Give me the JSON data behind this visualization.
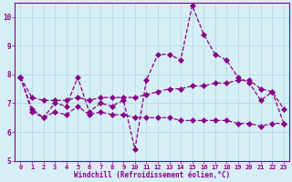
{
  "xlabel": "Windchill (Refroidissement éolien,°C)",
  "ylabel": "",
  "background_color": "#d6eef5",
  "line_color": "#880088",
  "grid_color": "#b8dde8",
  "x": [
    0,
    1,
    2,
    3,
    4,
    5,
    6,
    7,
    8,
    9,
    10,
    11,
    12,
    13,
    14,
    15,
    16,
    17,
    18,
    19,
    20,
    21,
    22,
    23
  ],
  "y_main": [
    7.9,
    6.7,
    6.5,
    7.0,
    6.9,
    7.9,
    6.7,
    7.0,
    6.9,
    7.1,
    5.4,
    7.8,
    8.7,
    8.7,
    8.5,
    10.4,
    9.4,
    8.7,
    8.5,
    7.9,
    7.7,
    7.1,
    7.4,
    6.3
  ],
  "y_upper": [
    7.9,
    7.2,
    7.1,
    7.1,
    7.1,
    7.2,
    7.1,
    7.2,
    7.2,
    7.2,
    7.2,
    7.3,
    7.4,
    7.5,
    7.5,
    7.6,
    7.6,
    7.7,
    7.7,
    7.8,
    7.8,
    7.5,
    7.4,
    6.8
  ],
  "y_lower": [
    7.9,
    6.8,
    6.5,
    6.7,
    6.6,
    6.9,
    6.6,
    6.7,
    6.6,
    6.6,
    6.5,
    6.5,
    6.5,
    6.5,
    6.4,
    6.4,
    6.4,
    6.4,
    6.4,
    6.3,
    6.3,
    6.2,
    6.3,
    6.3
  ],
  "ylim": [
    5,
    10.5
  ],
  "xlim": [
    -0.5,
    23.5
  ],
  "yticks": [
    5,
    6,
    7,
    8,
    9,
    10
  ],
  "xticks": [
    0,
    1,
    2,
    3,
    4,
    5,
    6,
    7,
    8,
    9,
    10,
    11,
    12,
    13,
    14,
    15,
    16,
    17,
    18,
    19,
    20,
    21,
    22,
    23
  ]
}
